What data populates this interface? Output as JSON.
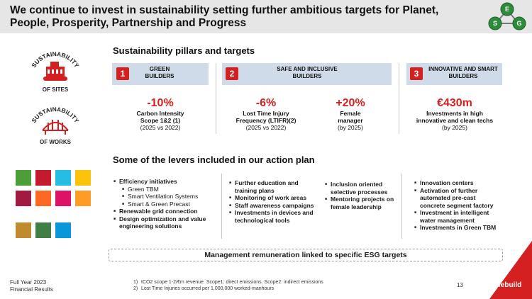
{
  "title": "We continue to invest in sustainability setting further ambitious targets for Planet, People, Prosperity, Partnership and Progress",
  "esg": {
    "e": "E",
    "s": "S",
    "g": "G"
  },
  "left_icons": [
    {
      "arc": "SUSTAINABILITY",
      "caption": "OF SITES",
      "icon": "construction-vehicle-icon"
    },
    {
      "arc": "SUSTAINABILITY",
      "caption": "OF WORKS",
      "icon": "bridge-icon"
    }
  ],
  "pillars_title": "Sustainability pillars and targets",
  "pillars": [
    {
      "num": "1",
      "label": "GREEN BUILDERS"
    },
    {
      "num": "2",
      "label": "SAFE AND INCLUSIVE BUILDERS"
    },
    {
      "num": "3",
      "label": "INNOVATIVE AND SMART BUILDERS"
    }
  ],
  "kpis": [
    {
      "value": "-10%",
      "label": "Carbon Intensity Scope 1&2 (1)",
      "sub": "(2025 vs 2022)"
    },
    {
      "value": "-6%",
      "label": "Lost Time Injury Frequency (LTIFR)(2)",
      "sub": "(2025 vs 2022)"
    },
    {
      "value": "+20%",
      "label": "Female manager",
      "sub": "(by 2025)"
    },
    {
      "value": "€430m",
      "label": "Investments in high innovative and clean techs",
      "sub": "(by 2025)"
    }
  ],
  "levers_title": "Some of the levers included in our action plan",
  "levers": {
    "col1": [
      {
        "type": "main",
        "text": "Efficiency initiatives"
      },
      {
        "type": "sub",
        "text": "Green TBM"
      },
      {
        "type": "sub",
        "text": "Smart Ventilation Systems"
      },
      {
        "type": "sub",
        "text": "Smart & Green Precast"
      },
      {
        "type": "main",
        "text": "Renewable grid connection"
      },
      {
        "type": "main",
        "text": "Design optimization and value engineering solutions"
      }
    ],
    "col2": [
      {
        "type": "main",
        "text": "Further education and training plans"
      },
      {
        "type": "main",
        "text": "Monitoring of work areas"
      },
      {
        "type": "main",
        "text": "Staff awareness campaigns"
      },
      {
        "type": "main",
        "text": "Investments in devices and technological tools"
      }
    ],
    "col3": [
      {
        "type": "main",
        "text": "Inclusion oriented selective processes"
      },
      {
        "type": "main",
        "text": "Mentoring projects on female leadership"
      }
    ],
    "col4": [
      {
        "type": "main",
        "text": "Innovation centers"
      },
      {
        "type": "main",
        "text": "Activation of further automated pre-cast concrete segment factory"
      },
      {
        "type": "main",
        "text": "Investment in intelligent water management"
      },
      {
        "type": "main",
        "text": "Investments in Green TBM"
      }
    ]
  },
  "sdg_colors": [
    "#4c9f38",
    "#c5192d",
    "#26bde2",
    "#fcc30b",
    "#a21942",
    "#fd6925",
    "#dd1367",
    "#fd9d24",
    "#bf8b2e",
    "#3f7e44",
    "#0a97d9"
  ],
  "mgmt_banner": "Management remuneration linked to specific ESG targets",
  "footer": {
    "line1": "Full Year 2023",
    "line2": "Financial Results"
  },
  "footnotes": [
    {
      "n": "1)",
      "text": "tCO2 scope 1-2/€m revenue. Scope1: direct emissions. Scope2: indirect emissions"
    },
    {
      "n": "2)",
      "text": "Lost Time Injuries occurred per 1,000,000 worked-manhours"
    }
  ],
  "page_number": "13",
  "brand": "webuild",
  "colors": {
    "accent": "#d42020",
    "pillar_bg": "#cfdbe8",
    "header_bg": "#e6e6e6"
  }
}
